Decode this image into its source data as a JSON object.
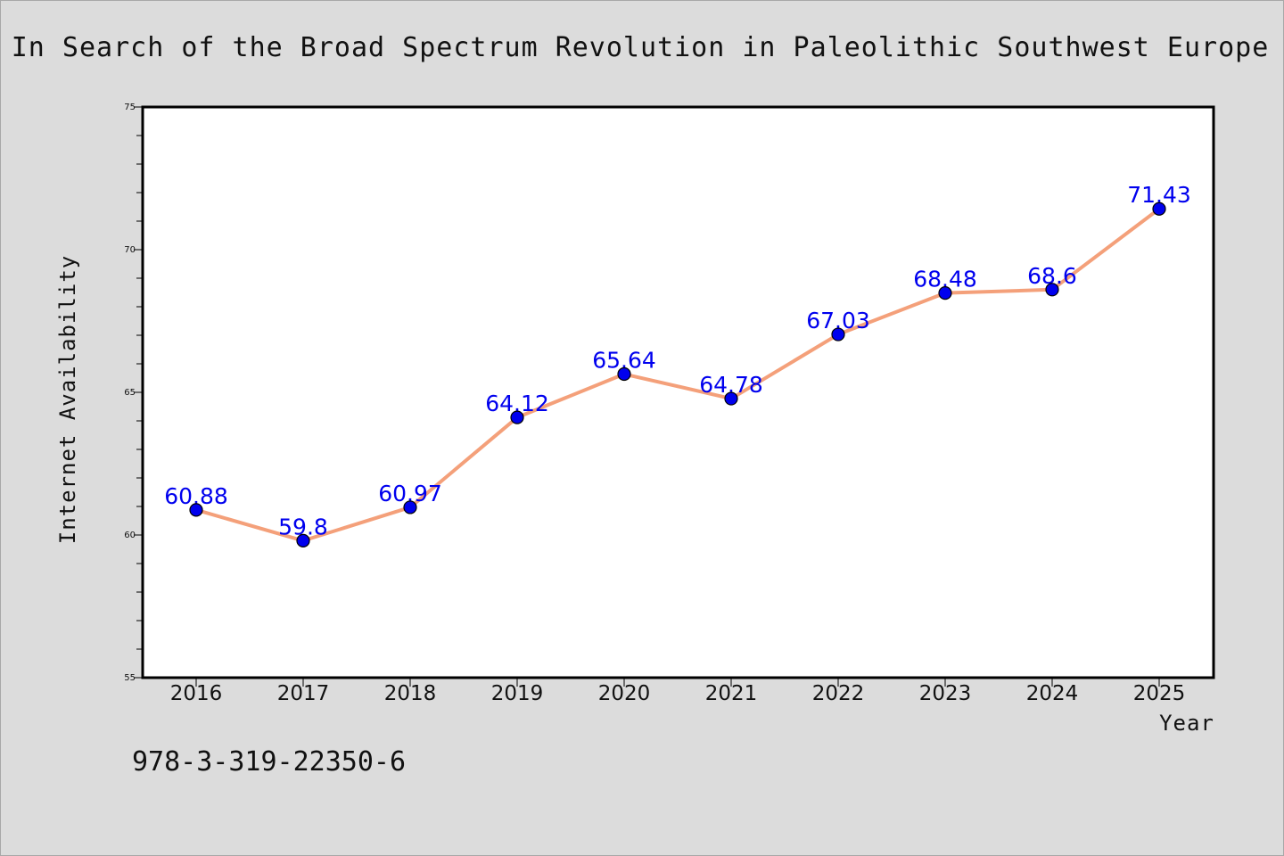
{
  "chart_data": {
    "type": "line",
    "title": "In Search of the Broad Spectrum Revolution in Paleolithic Southwest Europe",
    "xlabel": "Year",
    "ylabel": "Internet Availability",
    "categories": [
      "2016",
      "2017",
      "2018",
      "2019",
      "2020",
      "2021",
      "2022",
      "2023",
      "2024",
      "2025"
    ],
    "series": [
      {
        "values": [
          60.88,
          59.8,
          60.97,
          64.12,
          65.64,
          64.78,
          67.03,
          68.48,
          68.6,
          71.43
        ],
        "labels": [
          "60.88",
          "59.8",
          "60.97",
          "64.12",
          "65.64",
          "64.78",
          "67.03",
          "68.48",
          "68.6",
          "71.43"
        ],
        "line_color": "#f4a07a",
        "marker_color": "#0000ee"
      }
    ],
    "ylim": [
      55,
      75
    ],
    "yticks": [
      "55",
      "60",
      "65",
      "70",
      "75"
    ],
    "grid": false,
    "legend": "none",
    "background": "#dcdcdc",
    "plot_background": "#ffffff"
  },
  "annotation": {
    "text": "978-3-319-22350-6"
  }
}
